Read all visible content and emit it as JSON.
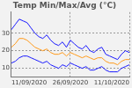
{
  "chart_data": {
    "type": "line",
    "title": "Temp Min/Max/Avg (°C)",
    "categories": [
      "11/09/2020",
      null,
      null,
      null,
      null,
      null,
      null,
      null,
      null,
      null,
      null,
      null,
      null,
      null,
      null,
      "26/09/2020",
      null,
      null,
      null,
      null,
      null,
      null,
      null,
      null,
      null,
      null,
      null,
      null,
      null,
      null,
      "11/10/2020"
    ],
    "series": [
      {
        "color": "#1a1aff",
        "values": [
          32,
          35,
          38,
          37,
          36,
          33,
          30,
          28,
          27,
          29,
          26,
          24,
          23,
          25,
          22,
          26,
          24,
          22,
          21,
          23,
          20,
          19,
          21,
          22,
          18,
          17,
          16,
          15,
          18,
          20,
          19
        ]
      },
      {
        "color": "#ff9a1a",
        "values": [
          22,
          24,
          27,
          27,
          26,
          24,
          22,
          21,
          20,
          21,
          19,
          18,
          18,
          19,
          17,
          19,
          18,
          17,
          16,
          17,
          16,
          15,
          16,
          16,
          14,
          13,
          13,
          12,
          14,
          15,
          15
        ]
      },
      {
        "color": "#1a1aff",
        "values": [
          13,
          14,
          16,
          17,
          17,
          16,
          15,
          14,
          13,
          14,
          12,
          11,
          10,
          12,
          11,
          13,
          12,
          11,
          10,
          11,
          9,
          9,
          10,
          11,
          9,
          8,
          8,
          8,
          10,
          11,
          12
        ]
      }
    ],
    "ylim": [
      5,
      42
    ],
    "yticks": [
      10,
      20,
      30
    ],
    "grid": true
  }
}
